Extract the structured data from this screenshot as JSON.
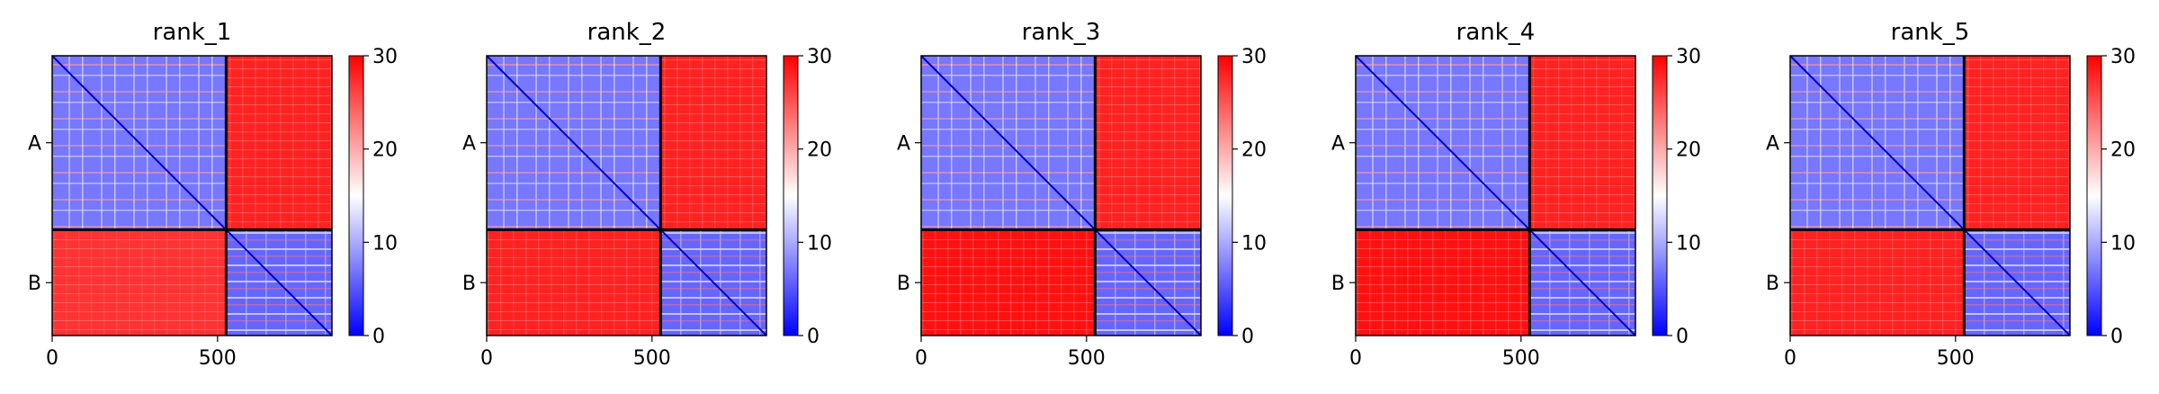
{
  "chart_data": [
    {
      "type": "heatmap",
      "title": "rank_1",
      "chains": [
        "A",
        "B"
      ],
      "chain_lengths": [
        526,
        320
      ],
      "x_ticks": [
        0,
        500
      ],
      "xlim": [
        0,
        846
      ],
      "colorbar": {
        "min": 0,
        "max": 30,
        "ticks": [
          0,
          10,
          20,
          30
        ],
        "colormap": "bwr"
      },
      "blocks": {
        "A-A": 7,
        "A-B": 28,
        "B-A": 27,
        "B-B": 6
      }
    },
    {
      "type": "heatmap",
      "title": "rank_2",
      "chains": [
        "A",
        "B"
      ],
      "chain_lengths": [
        526,
        320
      ],
      "x_ticks": [
        0,
        500
      ],
      "xlim": [
        0,
        846
      ],
      "colorbar": {
        "min": 0,
        "max": 30,
        "ticks": [
          0,
          10,
          20,
          30
        ],
        "colormap": "bwr"
      },
      "blocks": {
        "A-A": 7,
        "A-B": 28,
        "B-A": 28,
        "B-B": 6
      }
    },
    {
      "type": "heatmap",
      "title": "rank_3",
      "chains": [
        "A",
        "B"
      ],
      "chain_lengths": [
        526,
        320
      ],
      "x_ticks": [
        0,
        500
      ],
      "xlim": [
        0,
        846
      ],
      "colorbar": {
        "min": 0,
        "max": 30,
        "ticks": [
          0,
          10,
          20,
          30
        ],
        "colormap": "bwr"
      },
      "blocks": {
        "A-A": 7,
        "A-B": 28,
        "B-A": 29,
        "B-B": 6
      }
    },
    {
      "type": "heatmap",
      "title": "rank_4",
      "chains": [
        "A",
        "B"
      ],
      "chain_lengths": [
        526,
        320
      ],
      "x_ticks": [
        0,
        500
      ],
      "xlim": [
        0,
        846
      ],
      "colorbar": {
        "min": 0,
        "max": 30,
        "ticks": [
          0,
          10,
          20,
          30
        ],
        "colormap": "bwr"
      },
      "blocks": {
        "A-A": 7,
        "A-B": 28,
        "B-A": 29,
        "B-B": 6
      }
    },
    {
      "type": "heatmap",
      "title": "rank_5",
      "chains": [
        "A",
        "B"
      ],
      "chain_lengths": [
        526,
        320
      ],
      "x_ticks": [
        0,
        500
      ],
      "xlim": [
        0,
        846
      ],
      "colorbar": {
        "min": 0,
        "max": 30,
        "ticks": [
          0,
          10,
          20,
          30
        ],
        "colormap": "bwr"
      },
      "blocks": {
        "A-A": 7,
        "A-B": 28,
        "B-A": 28,
        "B-B": 6
      }
    }
  ]
}
